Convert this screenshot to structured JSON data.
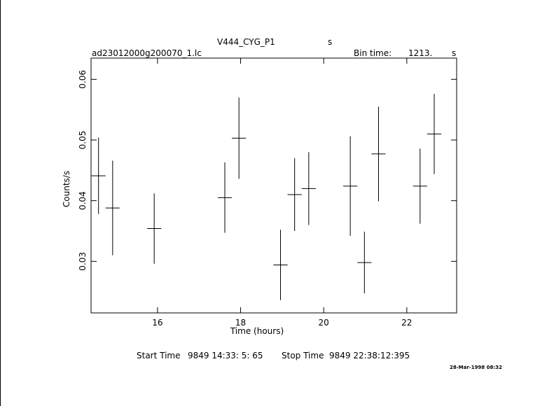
{
  "header": {
    "object": "V444_CYG_P1",
    "object_unit": "s",
    "filename": "ad23012000g200070_1.lc",
    "bin_time_label": "Bin time:",
    "bin_time_value": "1213.",
    "bin_time_unit": "s"
  },
  "footer": {
    "start_label": "Start Time",
    "start_value": "9849 14:33: 5: 65",
    "stop_label": "Stop Time",
    "stop_value": "9849 22:38:12:395",
    "date_stamp": "28-Mar-1998 08:32"
  },
  "chart_data": {
    "type": "scatter",
    "xlabel": "Time (hours)",
    "ylabel": "Counts/s",
    "xlim": [
      14.4,
      23.2
    ],
    "ylim": [
      0.0215,
      0.0635
    ],
    "x_ticks": [
      16,
      18,
      20,
      22
    ],
    "x_tick_labels": [
      "16",
      "18",
      "20",
      "22"
    ],
    "y_ticks": [
      0.03,
      0.04,
      0.05,
      0.06
    ],
    "y_tick_labels": [
      "0.03",
      "0.04",
      "0.05",
      "0.06"
    ],
    "grid": false,
    "series": [
      {
        "points": [
          {
            "x": 14.58,
            "xerr": 0.17,
            "y": 0.0441,
            "yerr": 0.0063
          },
          {
            "x": 14.92,
            "xerr": 0.17,
            "y": 0.0388,
            "yerr": 0.0078
          },
          {
            "x": 15.92,
            "xerr": 0.17,
            "y": 0.0354,
            "yerr": 0.0058
          },
          {
            "x": 17.62,
            "xerr": 0.17,
            "y": 0.0405,
            "yerr": 0.0058
          },
          {
            "x": 17.96,
            "xerr": 0.17,
            "y": 0.0503,
            "yerr": 0.0067
          },
          {
            "x": 18.96,
            "xerr": 0.17,
            "y": 0.0294,
            "yerr": 0.0058
          },
          {
            "x": 19.3,
            "xerr": 0.17,
            "y": 0.041,
            "yerr": 0.006
          },
          {
            "x": 19.64,
            "xerr": 0.17,
            "y": 0.042,
            "yerr": 0.006
          },
          {
            "x": 20.64,
            "xerr": 0.17,
            "y": 0.0424,
            "yerr": 0.0082
          },
          {
            "x": 20.98,
            "xerr": 0.17,
            "y": 0.0298,
            "yerr": 0.0051
          },
          {
            "x": 21.32,
            "xerr": 0.17,
            "y": 0.0477,
            "yerr": 0.0078
          },
          {
            "x": 22.32,
            "xerr": 0.17,
            "y": 0.0424,
            "yerr": 0.0062
          },
          {
            "x": 22.66,
            "xerr": 0.17,
            "y": 0.051,
            "yerr": 0.0066
          }
        ]
      }
    ]
  }
}
